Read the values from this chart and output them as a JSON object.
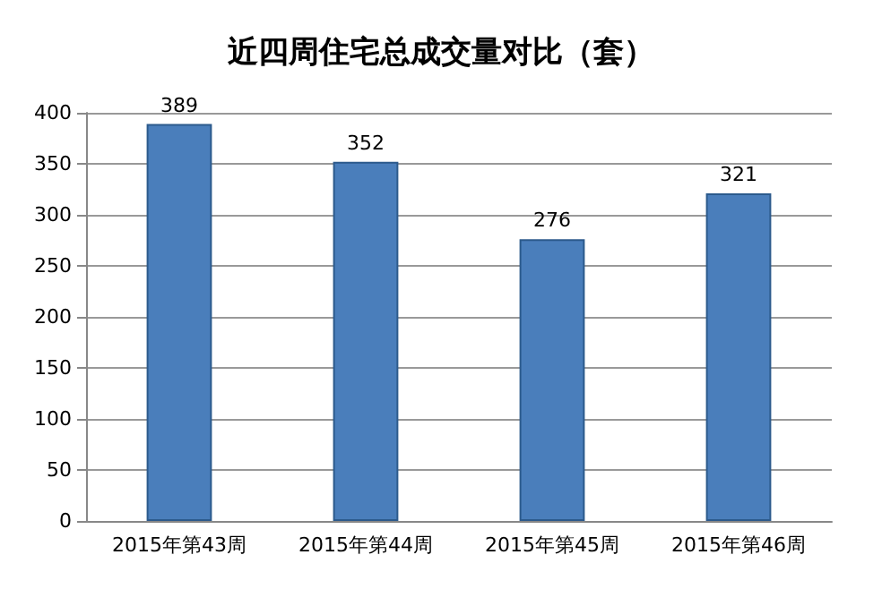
{
  "chart_data": {
    "type": "bar",
    "title": "近四周住宅总成交量对比（套）",
    "categories": [
      "2015年第43周",
      "2015年第44周",
      "2015年第45周",
      "2015年第46周"
    ],
    "values": [
      389,
      352,
      276,
      321
    ],
    "color": "#4a7ebb",
    "ylim": [
      0,
      400
    ],
    "yticks": [
      0,
      50,
      100,
      150,
      200,
      250,
      300,
      350,
      400
    ],
    "grid": "y",
    "data_labels": true
  }
}
